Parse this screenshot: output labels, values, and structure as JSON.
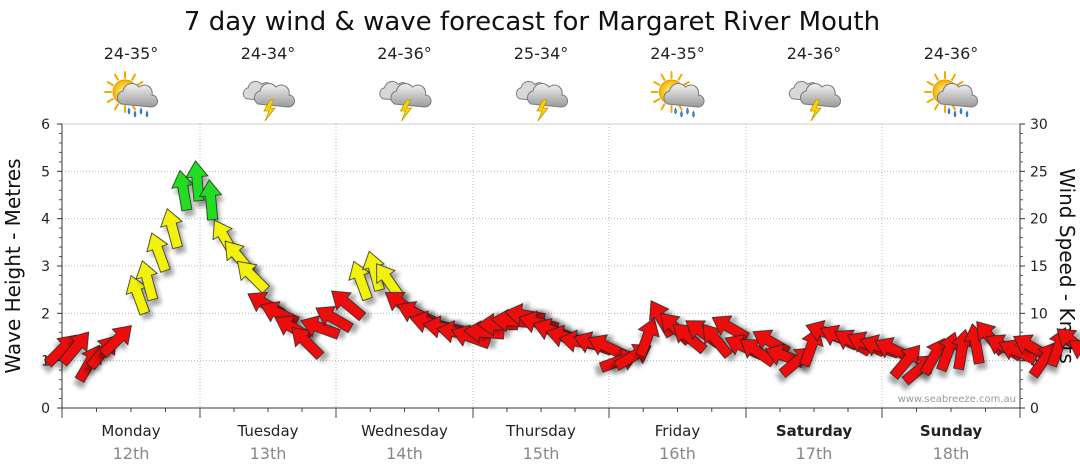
{
  "chart_data": {
    "type": "line",
    "title": "7 day wind & wave forecast for Margaret River Mouth",
    "ylabel_left": "Wave Height - Metres",
    "ylabel_right": "Wind Speed - Knots",
    "left_axis": {
      "min": 0,
      "max": 6,
      "ticks": [
        "0",
        "1",
        "2",
        "3",
        "4",
        "5",
        "6"
      ]
    },
    "right_axis": {
      "min": 0,
      "max": 30,
      "ticks": [
        "0",
        "5",
        "10",
        "15",
        "20",
        "25",
        "30"
      ]
    },
    "days": [
      {
        "name": "Monday",
        "date": "12th",
        "temp": "24-35°",
        "weather_icon": "sun-cloud-rain-icon",
        "bold": false
      },
      {
        "name": "Tuesday",
        "date": "13th",
        "temp": "24-34°",
        "weather_icon": "cloud-thunder-icon",
        "bold": false
      },
      {
        "name": "Wednesday",
        "date": "14th",
        "temp": "24-36°",
        "weather_icon": "cloud-thunder-icon",
        "bold": false
      },
      {
        "name": "Thursday",
        "date": "15th",
        "temp": "25-34°",
        "weather_icon": "cloud-thunder-icon",
        "bold": false
      },
      {
        "name": "Friday",
        "date": "16th",
        "temp": "24-35°",
        "weather_icon": "sun-cloud-rain-icon",
        "bold": false
      },
      {
        "name": "Saturday",
        "date": "17th",
        "temp": "24-36°",
        "weather_icon": "cloud-thunder-icon",
        "bold": true
      },
      {
        "name": "Sunday",
        "date": "18th",
        "temp": "24-36°",
        "weather_icon": "sun-cloud-rain-icon",
        "bold": true
      }
    ],
    "wind_series": {
      "name": "Wind Speed (knots)",
      "speed_color_scale": {
        "low": "#ee1111",
        "mid": "#f2f20a",
        "high": "#22dd22"
      },
      "points": [
        {
          "t": 0.0,
          "kn": 6.2,
          "dir": 225
        },
        {
          "t": 0.1,
          "kn": 6.4,
          "dir": 220
        },
        {
          "t": 0.2,
          "kn": 4.8,
          "dir": 210
        },
        {
          "t": 0.3,
          "kn": 6.0,
          "dir": 220
        },
        {
          "t": 0.4,
          "kn": 7.2,
          "dir": 225
        },
        {
          "t": 0.55,
          "kn": 12.0,
          "dir": 160
        },
        {
          "t": 0.62,
          "kn": 13.5,
          "dir": 165
        },
        {
          "t": 0.7,
          "kn": 16.5,
          "dir": 160
        },
        {
          "t": 0.8,
          "kn": 19.0,
          "dir": 165
        },
        {
          "t": 0.88,
          "kn": 23.0,
          "dir": 170
        },
        {
          "t": 0.98,
          "kn": 24.0,
          "dir": 175
        },
        {
          "t": 1.08,
          "kn": 22.0,
          "dir": 175
        },
        {
          "t": 1.18,
          "kn": 18.0,
          "dir": 150
        },
        {
          "t": 1.28,
          "kn": 16.0,
          "dir": 140
        },
        {
          "t": 1.38,
          "kn": 14.0,
          "dir": 135
        },
        {
          "t": 1.48,
          "kn": 11.0,
          "dir": 120
        },
        {
          "t": 1.58,
          "kn": 10.0,
          "dir": 115
        },
        {
          "t": 1.68,
          "kn": 8.5,
          "dir": 120
        },
        {
          "t": 1.78,
          "kn": 7.0,
          "dir": 135
        },
        {
          "t": 1.88,
          "kn": 8.5,
          "dir": 110
        },
        {
          "t": 1.98,
          "kn": 9.5,
          "dir": 120
        },
        {
          "t": 2.08,
          "kn": 11.0,
          "dir": 130
        },
        {
          "t": 2.18,
          "kn": 13.5,
          "dir": 160
        },
        {
          "t": 2.28,
          "kn": 14.5,
          "dir": 165
        },
        {
          "t": 2.38,
          "kn": 13.5,
          "dir": 145
        },
        {
          "t": 2.48,
          "kn": 11.0,
          "dir": 125
        },
        {
          "t": 2.58,
          "kn": 10.0,
          "dir": 115
        },
        {
          "t": 2.68,
          "kn": 9.0,
          "dir": 105
        },
        {
          "t": 2.78,
          "kn": 8.5,
          "dir": 100
        },
        {
          "t": 2.88,
          "kn": 8.0,
          "dir": 100
        },
        {
          "t": 2.98,
          "kn": 7.5,
          "dir": 110
        },
        {
          "t": 3.08,
          "kn": 8.0,
          "dir": 95
        },
        {
          "t": 3.18,
          "kn": 8.8,
          "dir": 90
        },
        {
          "t": 3.28,
          "kn": 9.2,
          "dir": 95
        },
        {
          "t": 3.38,
          "kn": 9.8,
          "dir": 100
        },
        {
          "t": 3.48,
          "kn": 9.0,
          "dir": 105
        },
        {
          "t": 3.58,
          "kn": 8.2,
          "dir": 110
        },
        {
          "t": 3.68,
          "kn": 7.5,
          "dir": 105
        },
        {
          "t": 3.78,
          "kn": 7.0,
          "dir": 100
        },
        {
          "t": 3.88,
          "kn": 6.8,
          "dir": 110
        },
        {
          "t": 3.98,
          "kn": 6.5,
          "dir": 115
        },
        {
          "t": 4.08,
          "kn": 5.0,
          "dir": 250
        },
        {
          "t": 4.18,
          "kn": 5.5,
          "dir": 240
        },
        {
          "t": 4.28,
          "kn": 7.5,
          "dir": 200
        },
        {
          "t": 4.38,
          "kn": 9.5,
          "dir": 150
        },
        {
          "t": 4.48,
          "kn": 8.5,
          "dir": 135
        },
        {
          "t": 4.58,
          "kn": 7.5,
          "dir": 130
        },
        {
          "t": 4.68,
          "kn": 8.0,
          "dir": 125
        },
        {
          "t": 4.78,
          "kn": 7.2,
          "dir": 140
        },
        {
          "t": 4.88,
          "kn": 8.5,
          "dir": 120
        },
        {
          "t": 4.98,
          "kn": 6.5,
          "dir": 115
        },
        {
          "t": 5.08,
          "kn": 6.0,
          "dir": 125
        },
        {
          "t": 5.18,
          "kn": 7.0,
          "dir": 120
        },
        {
          "t": 5.28,
          "kn": 5.5,
          "dir": 110
        },
        {
          "t": 5.38,
          "kn": 5.0,
          "dir": 230
        },
        {
          "t": 5.48,
          "kn": 6.5,
          "dir": 200
        },
        {
          "t": 5.58,
          "kn": 8.0,
          "dir": 110
        },
        {
          "t": 5.68,
          "kn": 7.5,
          "dir": 115
        },
        {
          "t": 5.78,
          "kn": 7.0,
          "dir": 120
        },
        {
          "t": 5.88,
          "kn": 6.8,
          "dir": 115
        },
        {
          "t": 5.98,
          "kn": 6.5,
          "dir": 110
        },
        {
          "t": 6.08,
          "kn": 6.2,
          "dir": 115
        },
        {
          "t": 6.18,
          "kn": 5.0,
          "dir": 220
        },
        {
          "t": 6.28,
          "kn": 4.2,
          "dir": 230
        },
        {
          "t": 6.38,
          "kn": 5.5,
          "dir": 210
        },
        {
          "t": 6.48,
          "kn": 6.0,
          "dir": 200
        },
        {
          "t": 6.58,
          "kn": 6.2,
          "dir": 190
        },
        {
          "t": 6.68,
          "kn": 6.8,
          "dir": 170
        },
        {
          "t": 6.78,
          "kn": 7.5,
          "dir": 140
        },
        {
          "t": 6.88,
          "kn": 6.5,
          "dir": 120
        },
        {
          "t": 6.98,
          "kn": 6.0,
          "dir": 115
        },
        {
          "t": 7.08,
          "kn": 6.5,
          "dir": 120
        },
        {
          "t": 7.18,
          "kn": 5.2,
          "dir": 215
        },
        {
          "t": 7.28,
          "kn": 6.5,
          "dir": 200
        },
        {
          "t": 7.38,
          "kn": 7.0,
          "dir": 130
        },
        {
          "t": 7.48,
          "kn": 6.0,
          "dir": 120
        },
        {
          "t": 7.58,
          "kn": 6.2,
          "dir": 125
        },
        {
          "t": 7.68,
          "kn": 6.8,
          "dir": 130
        },
        {
          "t": 7.78,
          "kn": 7.5,
          "dir": 135
        },
        {
          "t": 7.88,
          "kn": 8.0,
          "dir": 140
        },
        {
          "t": 7.98,
          "kn": 8.5,
          "dir": 145
        }
      ]
    }
  },
  "watermark": "www.seabreeze.com.au"
}
